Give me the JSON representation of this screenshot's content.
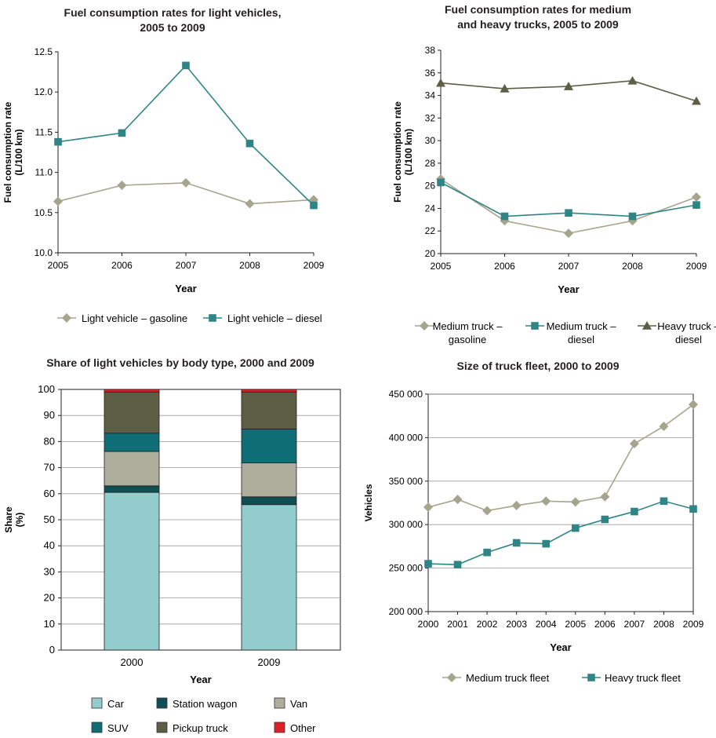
{
  "chart_data": [
    {
      "type": "line",
      "title": "Fuel consumption rates for light vehicles,\n2005 to 2009",
      "xlabel": "Year",
      "ylabel": "Fuel consumption rate\n(L/100 km)",
      "x": [
        "2005",
        "2006",
        "2007",
        "2008",
        "2009"
      ],
      "ylim": [
        10.0,
        12.5
      ],
      "yticks": [
        "10.0",
        "10.5",
        "11.0",
        "11.5",
        "12.0",
        "12.5"
      ],
      "series": [
        {
          "name": "Light vehicle – gasoline",
          "values": [
            10.64,
            10.84,
            10.87,
            10.61,
            10.66
          ],
          "color": "#a5a48d",
          "marker": "diamond"
        },
        {
          "name": "Light vehicle – diesel",
          "values": [
            11.38,
            11.49,
            12.33,
            11.36,
            10.59
          ],
          "color": "#2f8585",
          "marker": "square"
        }
      ]
    },
    {
      "type": "line",
      "title": "Fuel consumption rates for medium\nand heavy trucks, 2005 to 2009",
      "xlabel": "Year",
      "ylabel": "Fuel consumption rate\n(L/100 km)",
      "x": [
        "2005",
        "2006",
        "2007",
        "2008",
        "2009"
      ],
      "ylim": [
        20,
        38
      ],
      "yticks": [
        "20",
        "22",
        "24",
        "26",
        "28",
        "30",
        "32",
        "34",
        "36",
        "38"
      ],
      "series": [
        {
          "name": "Medium truck –\ngasoline",
          "values": [
            26.6,
            22.9,
            21.8,
            22.9,
            25.0
          ],
          "color": "#a5a48d",
          "marker": "diamond"
        },
        {
          "name": "Medium truck –\ndiesel",
          "values": [
            26.3,
            23.3,
            23.6,
            23.3,
            24.3
          ],
          "color": "#2f8585",
          "marker": "square"
        },
        {
          "name": "Heavy truck –\ndiesel",
          "values": [
            35.1,
            34.6,
            34.8,
            35.3,
            33.5
          ],
          "color": "#5c5e45",
          "marker": "triangle"
        }
      ]
    },
    {
      "type": "bar",
      "stacked": true,
      "title": "Share of light vehicles by body type, 2000 and 2009",
      "xlabel": "Year",
      "ylabel": "Share\n(%)",
      "categories": [
        "2000",
        "2009"
      ],
      "ylim": [
        0,
        100
      ],
      "yticks": [
        "0",
        "10",
        "20",
        "30",
        "40",
        "50",
        "60",
        "70",
        "80",
        "90",
        "100"
      ],
      "series": [
        {
          "name": "Car",
          "values": [
            60.5,
            55.8
          ],
          "color": "#93cccc"
        },
        {
          "name": "Station wagon",
          "values": [
            2.5,
            3.0
          ],
          "color": "#0f4f54"
        },
        {
          "name": "Van",
          "values": [
            13.2,
            13.0
          ],
          "color": "#aeae9c"
        },
        {
          "name": "SUV",
          "values": [
            7.0,
            13.0
          ],
          "color": "#0f6d75"
        },
        {
          "name": "Pickup truck",
          "values": [
            15.8,
            14.2
          ],
          "color": "#5c5e45"
        },
        {
          "name": "Other",
          "values": [
            1.0,
            1.0
          ],
          "color": "#e11f26"
        }
      ],
      "legend_order": [
        "Car",
        "Station wagon",
        "Van",
        "SUV",
        "Pickup truck",
        "Other"
      ]
    },
    {
      "type": "line",
      "title": "Size of truck fleet, 2000 to 2009",
      "xlabel": "Year",
      "ylabel": "Vehicles",
      "x": [
        "2000",
        "2001",
        "2002",
        "2003",
        "2004",
        "2005",
        "2006",
        "2007",
        "2008",
        "2009"
      ],
      "ylim": [
        200000,
        450000
      ],
      "yticks": [
        "200 000",
        "250 000",
        "300 000",
        "350 000",
        "400 000",
        "450 000"
      ],
      "series": [
        {
          "name": "Medium truck fleet",
          "values": [
            320000,
            329000,
            316000,
            322000,
            327000,
            326000,
            332000,
            393000,
            413000,
            438000
          ],
          "color": "#a5a48d",
          "marker": "diamond"
        },
        {
          "name": "Heavy truck fleet",
          "values": [
            255000,
            254000,
            268000,
            279000,
            278000,
            296000,
            306000,
            315000,
            327000,
            318000
          ],
          "color": "#2f8585",
          "marker": "square"
        }
      ]
    }
  ]
}
